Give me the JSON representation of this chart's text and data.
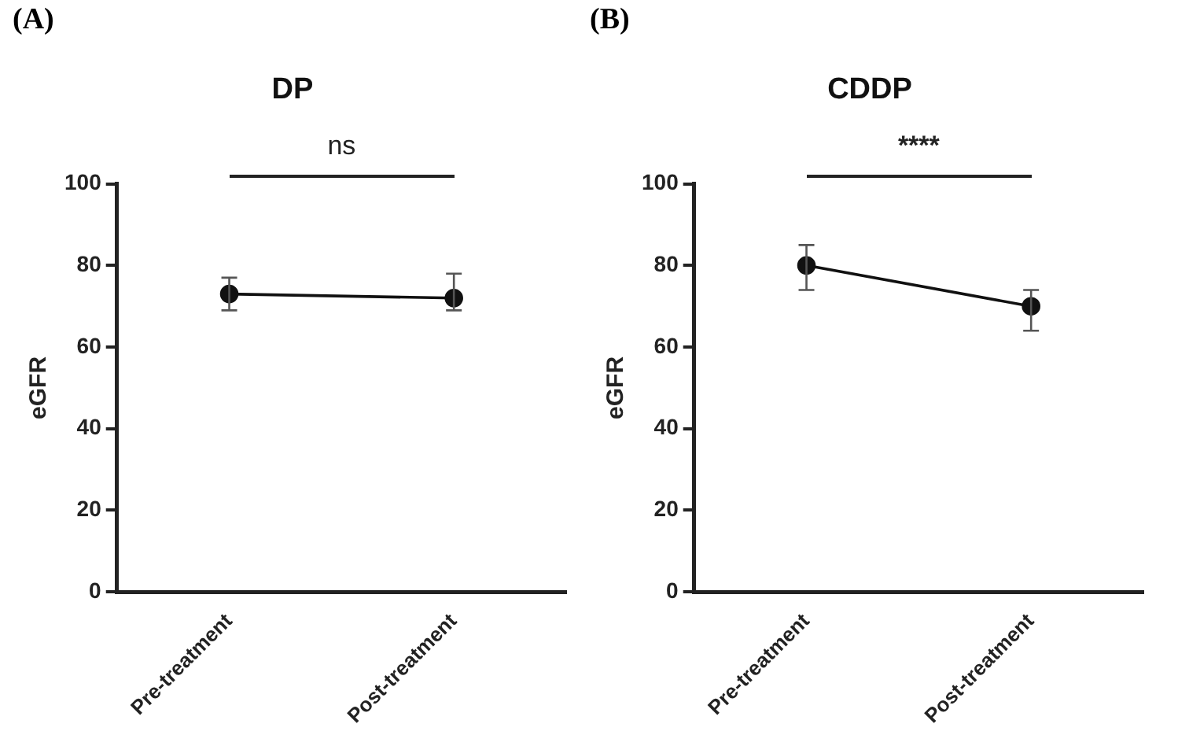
{
  "chart_data": [
    {
      "type": "line",
      "title": "DP",
      "ylabel": "eGFR",
      "categories": [
        "Pre-treatment",
        "Post-treatment"
      ],
      "values": [
        73,
        72
      ],
      "errors": [
        [
          69,
          77
        ],
        [
          69,
          78
        ]
      ],
      "color": "#111111",
      "marker": "circle",
      "ylim": [
        0,
        100
      ],
      "yticks": [
        0,
        20,
        40,
        60,
        80,
        100
      ],
      "grid": false,
      "legend": false,
      "annotations": [
        "(A)",
        "ns"
      ]
    },
    {
      "type": "line",
      "title": "CDDP",
      "ylabel": "eGFR",
      "categories": [
        "Pre-treatment",
        "Post-treatment"
      ],
      "values": [
        80,
        70
      ],
      "errors": [
        [
          74,
          85
        ],
        [
          64,
          74
        ]
      ],
      "color": "#111111",
      "marker": "circle",
      "ylim": [
        0,
        100
      ],
      "yticks": [
        0,
        20,
        40,
        60,
        80,
        100
      ],
      "grid": false,
      "legend": false,
      "annotations": [
        "(B)",
        "****"
      ]
    }
  ]
}
